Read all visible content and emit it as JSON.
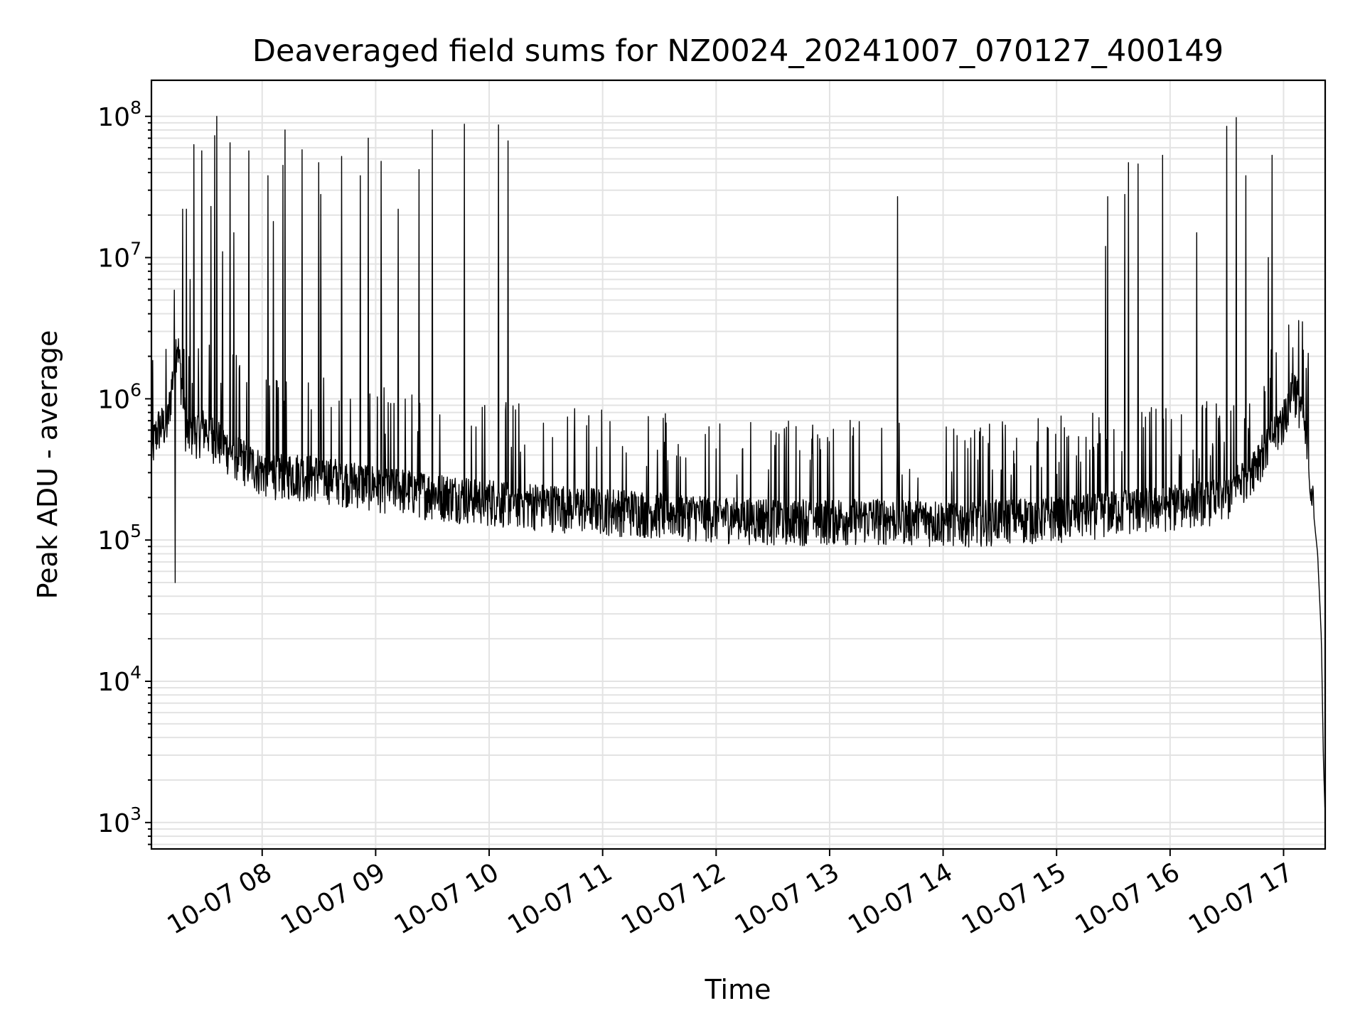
{
  "chart_data": {
    "type": "line",
    "title": "Deaveraged field sums for NZ0024_20241007_070127_400149",
    "xlabel": "Time",
    "ylabel": "Peak ADU - average",
    "yscale": "log",
    "ylim": [
      650,
      180000000
    ],
    "xlim": [
      "2024-10-07 07:01:27",
      "2024-10-07 17:22:00"
    ],
    "grid": "major and minor",
    "x_ticks": [
      "10-07 08",
      "10-07 09",
      "10-07 10",
      "10-07 11",
      "10-07 12",
      "10-07 13",
      "10-07 14",
      "10-07 15",
      "10-07 16",
      "10-07 17"
    ],
    "y_ticks": [
      {
        "value": 1000,
        "base": "10",
        "exp": "3"
      },
      {
        "value": 10000,
        "base": "10",
        "exp": "4"
      },
      {
        "value": 100000,
        "base": "10",
        "exp": "5"
      },
      {
        "value": 1000000,
        "base": "10",
        "exp": "6"
      },
      {
        "value": 10000000,
        "base": "10",
        "exp": "7"
      },
      {
        "value": 100000000,
        "base": "10",
        "exp": "8"
      }
    ],
    "series": [
      {
        "color": "#000000",
        "baseline_points": [
          [
            "2024-10-07 07:01",
            400000
          ],
          [
            "2024-10-07 07:05",
            600000
          ],
          [
            "2024-10-07 07:10",
            650000
          ],
          [
            "2024-10-07 07:15",
            2600000
          ],
          [
            "2024-10-07 07:20",
            550000
          ],
          [
            "2024-10-07 07:30",
            600000
          ],
          [
            "2024-10-07 07:40",
            450000
          ],
          [
            "2024-10-07 08:00",
            300000
          ],
          [
            "2024-10-07 08:30",
            280000
          ],
          [
            "2024-10-07 09:00",
            240000
          ],
          [
            "2024-10-07 09:30",
            210000
          ],
          [
            "2024-10-07 10:00",
            190000
          ],
          [
            "2024-10-07 10:30",
            175000
          ],
          [
            "2024-10-07 11:00",
            165000
          ],
          [
            "2024-10-07 11:30",
            155000
          ],
          [
            "2024-10-07 12:00",
            145000
          ],
          [
            "2024-10-07 12:30",
            140000
          ],
          [
            "2024-10-07 13:00",
            140000
          ],
          [
            "2024-10-07 13:30",
            140000
          ],
          [
            "2024-10-07 14:00",
            135000
          ],
          [
            "2024-10-07 14:30",
            140000
          ],
          [
            "2024-10-07 15:00",
            145000
          ],
          [
            "2024-10-07 15:30",
            160000
          ],
          [
            "2024-10-07 16:00",
            175000
          ],
          [
            "2024-10-07 16:30",
            200000
          ],
          [
            "2024-10-07 16:45",
            350000
          ],
          [
            "2024-10-07 16:55",
            550000
          ],
          [
            "2024-10-07 17:00",
            700000
          ],
          [
            "2024-10-07 17:05",
            1250000
          ],
          [
            "2024-10-07 17:10",
            800000
          ],
          [
            "2024-10-07 17:15",
            200000
          ],
          [
            "2024-10-07 17:18",
            80000
          ],
          [
            "2024-10-07 17:20",
            20000
          ],
          [
            "2024-10-07 17:21",
            3000
          ],
          [
            "2024-10-07 17:22",
            1100
          ]
        ],
        "spikes": [
          [
            "2024-10-07 07:14",
            50000
          ],
          [
            "2024-10-07 07:18",
            22000000
          ],
          [
            "2024-10-07 07:20",
            22000000
          ],
          [
            "2024-10-07 07:22",
            7000000
          ],
          [
            "2024-10-07 07:24",
            63000000
          ],
          [
            "2024-10-07 07:28",
            57000000
          ],
          [
            "2024-10-07 07:33",
            23000000
          ],
          [
            "2024-10-07 07:35",
            73000000
          ],
          [
            "2024-10-07 07:36",
            100000000
          ],
          [
            "2024-10-07 07:39",
            11000000
          ],
          [
            "2024-10-07 07:43",
            65000000
          ],
          [
            "2024-10-07 07:45",
            15000000
          ],
          [
            "2024-10-07 07:53",
            57000000
          ],
          [
            "2024-10-07 08:03",
            38000000
          ],
          [
            "2024-10-07 08:06",
            18000000
          ],
          [
            "2024-10-07 08:11",
            45000000
          ],
          [
            "2024-10-07 08:12",
            80000000
          ],
          [
            "2024-10-07 08:21",
            58000000
          ],
          [
            "2024-10-07 08:30",
            47000000
          ],
          [
            "2024-10-07 08:31",
            28000000
          ],
          [
            "2024-10-07 08:42",
            52000000
          ],
          [
            "2024-10-07 08:52",
            38000000
          ],
          [
            "2024-10-07 08:56",
            70000000
          ],
          [
            "2024-10-07 09:03",
            48000000
          ],
          [
            "2024-10-07 09:12",
            22000000
          ],
          [
            "2024-10-07 09:23",
            42000000
          ],
          [
            "2024-10-07 09:30",
            80000000
          ],
          [
            "2024-10-07 09:47",
            88000000
          ],
          [
            "2024-10-07 10:05",
            87000000
          ],
          [
            "2024-10-07 10:10",
            67000000
          ],
          [
            "2024-10-07 13:36",
            27000000
          ],
          [
            "2024-10-07 15:26",
            12000000
          ],
          [
            "2024-10-07 15:27",
            27000000
          ],
          [
            "2024-10-07 15:36",
            28000000
          ],
          [
            "2024-10-07 15:38",
            47000000
          ],
          [
            "2024-10-07 15:43",
            46000000
          ],
          [
            "2024-10-07 15:56",
            53000000
          ],
          [
            "2024-10-07 16:14",
            15000000
          ],
          [
            "2024-10-07 16:30",
            85000000
          ],
          [
            "2024-10-07 16:35",
            98000000
          ],
          [
            "2024-10-07 16:40",
            38000000
          ],
          [
            "2024-10-07 16:52",
            10000000
          ],
          [
            "2024-10-07 16:54",
            53000000
          ],
          [
            "2024-10-07 17:05",
            2300000
          ],
          [
            "2024-10-07 17:13",
            2100000
          ]
        ]
      }
    ]
  }
}
